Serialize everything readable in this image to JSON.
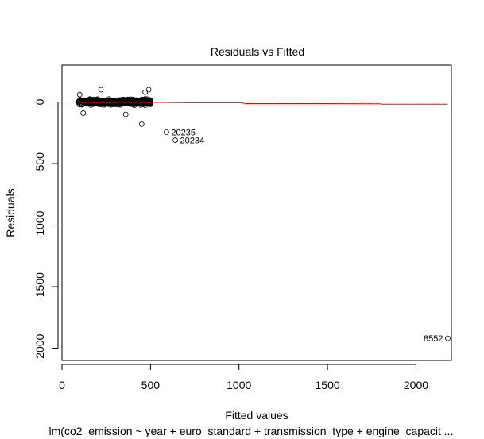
{
  "chart_data": {
    "type": "scatter",
    "title": "Residuals vs Fitted",
    "xlabel": "Fitted values",
    "ylabel": "Residuals",
    "subtitle": "lm(co2_emission ~ year + euro_standard + transmission_type + engine_capacit ...",
    "xlim": [
      0,
      2200
    ],
    "ylim": [
      -2100,
      300
    ],
    "x_ticks": [
      0,
      500,
      1000,
      1500,
      2000
    ],
    "y_ticks": [
      0,
      -500,
      -1000,
      -1500,
      -2000
    ],
    "reference_line": {
      "y": 0,
      "style": "dotted",
      "color": "#bbbbbb"
    },
    "smoother": {
      "color": "#ff0000",
      "points": [
        {
          "x": 90,
          "y": -2
        },
        {
          "x": 200,
          "y": 0
        },
        {
          "x": 300,
          "y": -3
        },
        {
          "x": 400,
          "y": -3
        },
        {
          "x": 500,
          "y": -2
        },
        {
          "x": 700,
          "y": -6
        },
        {
          "x": 1000,
          "y": -5
        },
        {
          "x": 1040,
          "y": -13
        },
        {
          "x": 1500,
          "y": -13
        },
        {
          "x": 1800,
          "y": -14
        },
        {
          "x": 1810,
          "y": -18
        },
        {
          "x": 2180,
          "y": -18
        }
      ]
    },
    "labeled_points": [
      {
        "label": "20235",
        "x": 590,
        "y": -245
      },
      {
        "label": "20234",
        "x": 640,
        "y": -310
      },
      {
        "label": "8552",
        "x": 2180,
        "y": -1920
      }
    ],
    "extra_points": [
      {
        "x": 450,
        "y": -180
      },
      {
        "x": 360,
        "y": -100
      },
      {
        "x": 120,
        "y": -90
      },
      {
        "x": 220,
        "y": 100
      },
      {
        "x": 490,
        "y": 100
      },
      {
        "x": 470,
        "y": 80
      },
      {
        "x": 100,
        "y": 60
      }
    ],
    "cluster": {
      "x_range": [
        90,
        500
      ],
      "y_spread": 45,
      "n_points": 520,
      "seed": 7
    },
    "grid": false,
    "marker": "open-circle"
  }
}
